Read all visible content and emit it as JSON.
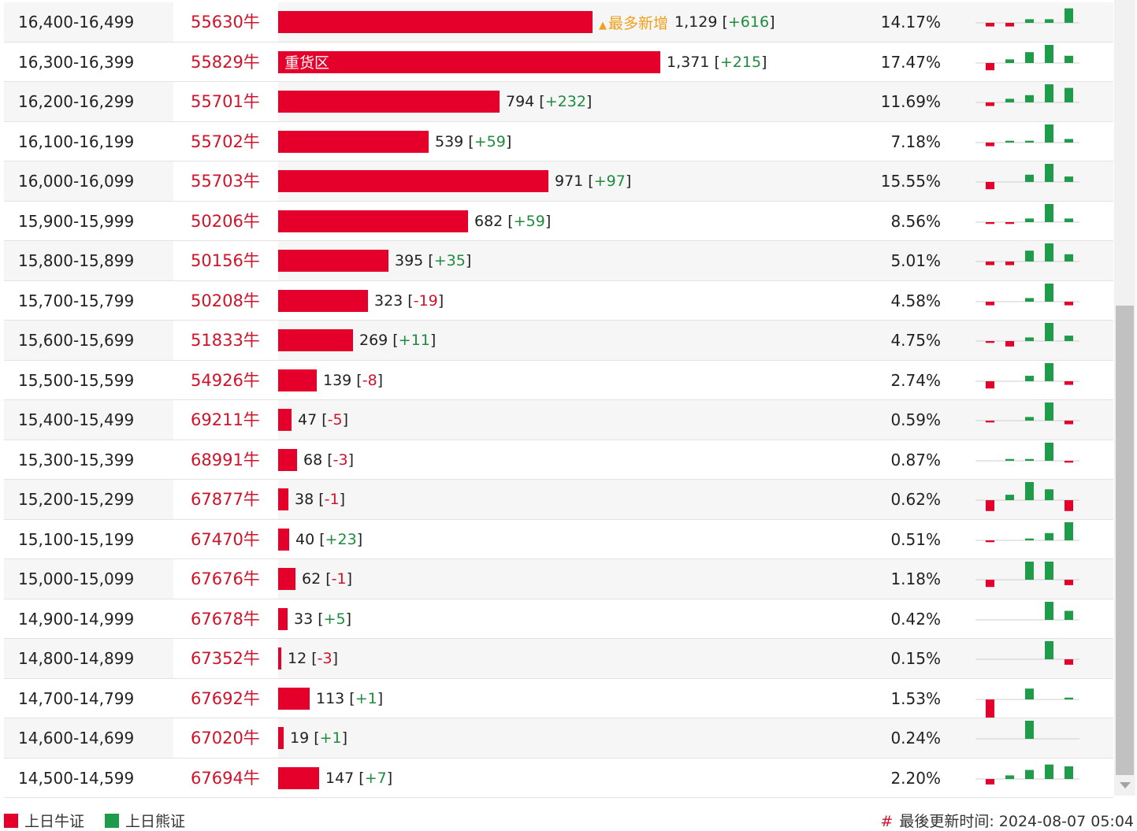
{
  "colors": {
    "bull": "#e4002b",
    "bear": "#1e9c4a",
    "up": "#1e8c3e",
    "down": "#d0132a",
    "tag": "#f0a01c"
  },
  "unit_suffix": "牛",
  "rows": [
    {
      "range": "16,400-16,499",
      "code": "55630",
      "count": "1,129",
      "change": "+616",
      "pct": "14.17%",
      "bar_value": 1129,
      "tag": "最多新增",
      "spark": [
        -1,
        -1,
        1,
        1,
        4
      ]
    },
    {
      "range": "16,300-16,399",
      "code": "55829",
      "count": "1,371",
      "change": "+215",
      "pct": "17.47%",
      "bar_value": 1371,
      "inlabel": "重货区",
      "spark": [
        -2,
        1,
        3,
        5,
        2
      ]
    },
    {
      "range": "16,200-16,299",
      "code": "55701",
      "count": "794",
      "change": "+232",
      "pct": "11.69%",
      "bar_value": 794,
      "spark": [
        -1,
        1,
        2,
        5,
        4
      ]
    },
    {
      "range": "16,100-16,199",
      "code": "55702",
      "count": "539",
      "change": "+59",
      "pct": "7.18%",
      "bar_value": 539,
      "spark": [
        -1,
        0.5,
        0.5,
        5,
        1
      ]
    },
    {
      "range": "16,000-16,099",
      "code": "55703",
      "count": "971",
      "change": "+97",
      "pct": "15.55%",
      "bar_value": 971,
      "spark": [
        -2,
        0,
        2,
        5,
        1.5
      ]
    },
    {
      "range": "15,900-15,999",
      "code": "50206",
      "count": "682",
      "change": "+59",
      "pct": "8.56%",
      "bar_value": 682,
      "spark": [
        -0.5,
        -0.5,
        1,
        5,
        1
      ]
    },
    {
      "range": "15,800-15,899",
      "code": "50156",
      "count": "395",
      "change": "+35",
      "pct": "5.01%",
      "bar_value": 395,
      "spark": [
        -1,
        -1,
        3,
        5,
        2
      ]
    },
    {
      "range": "15,700-15,799",
      "code": "50208",
      "count": "323",
      "change": "-19",
      "pct": "4.58%",
      "bar_value": 323,
      "spark": [
        -1,
        0,
        1,
        5,
        -1
      ]
    },
    {
      "range": "15,600-15,699",
      "code": "51833",
      "count": "269",
      "change": "+11",
      "pct": "4.75%",
      "bar_value": 269,
      "spark": [
        -0.5,
        -1.5,
        1,
        5,
        1.5
      ]
    },
    {
      "range": "15,500-15,599",
      "code": "54926",
      "count": "139",
      "change": "-8",
      "pct": "2.74%",
      "bar_value": 139,
      "spark": [
        -2,
        0,
        1.5,
        5,
        -1
      ]
    },
    {
      "range": "15,400-15,499",
      "code": "69211",
      "count": "47",
      "change": "-5",
      "pct": "0.59%",
      "bar_value": 47,
      "spark": [
        -0.5,
        0,
        1,
        5,
        -1
      ]
    },
    {
      "range": "15,300-15,399",
      "code": "68991",
      "count": "68",
      "change": "-3",
      "pct": "0.87%",
      "bar_value": 68,
      "spark": [
        0,
        0.5,
        0.5,
        5,
        -0.5
      ]
    },
    {
      "range": "15,200-15,299",
      "code": "67877",
      "count": "38",
      "change": "-1",
      "pct": "0.62%",
      "bar_value": 38,
      "spark": [
        -3,
        1.5,
        5,
        3,
        -3
      ]
    },
    {
      "range": "15,100-15,199",
      "code": "67470",
      "count": "40",
      "change": "+23",
      "pct": "0.51%",
      "bar_value": 40,
      "spark": [
        -0.5,
        0,
        0.5,
        2,
        5
      ]
    },
    {
      "range": "15,000-15,099",
      "code": "67676",
      "count": "62",
      "change": "-1",
      "pct": "1.18%",
      "bar_value": 62,
      "spark": [
        -2,
        0,
        5,
        5,
        -1.5
      ]
    },
    {
      "range": "14,900-14,999",
      "code": "67678",
      "count": "33",
      "change": "+5",
      "pct": "0.42%",
      "bar_value": 33,
      "spark": [
        0,
        0,
        0,
        5,
        2.5
      ]
    },
    {
      "range": "14,800-14,899",
      "code": "67352",
      "count": "12",
      "change": "-3",
      "pct": "0.15%",
      "bar_value": 12,
      "spark": [
        0,
        0,
        0,
        5,
        -1.5
      ]
    },
    {
      "range": "14,700-14,799",
      "code": "67692",
      "count": "113",
      "change": "+1",
      "pct": "1.53%",
      "bar_value": 113,
      "spark": [
        -5,
        0,
        3,
        0,
        0.5
      ]
    },
    {
      "range": "14,600-14,699",
      "code": "67020",
      "count": "19",
      "change": "+1",
      "pct": "0.24%",
      "bar_value": 19,
      "spark": [
        0,
        0,
        5,
        0,
        0
      ]
    },
    {
      "range": "14,500-14,599",
      "code": "67694",
      "count": "147",
      "change": "+7",
      "pct": "2.20%",
      "bar_value": 147,
      "spark": [
        -1.5,
        1,
        2.5,
        4,
        3.5
      ]
    }
  ],
  "bar_max": 1371,
  "legend": {
    "bull": "上日牛证",
    "bear": "上日熊证"
  },
  "update": {
    "label": "最後更新时间:",
    "time": "2024-08-07 05:04",
    "hash": "#"
  }
}
